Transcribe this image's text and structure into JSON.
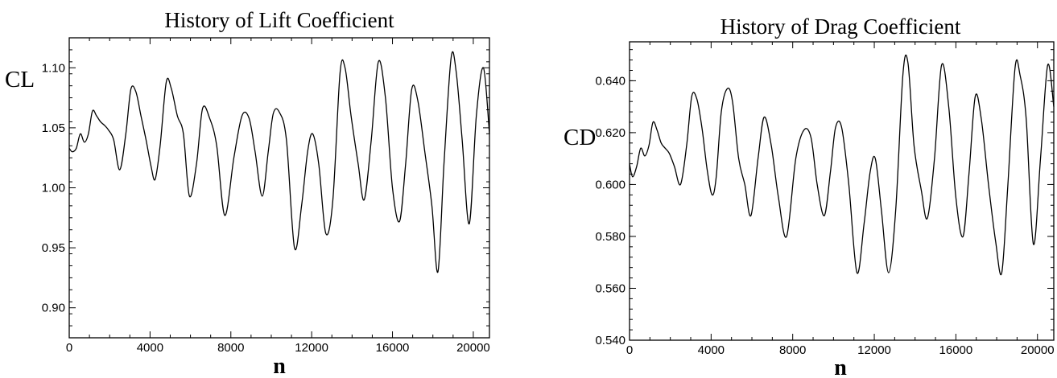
{
  "chart_data": [
    {
      "type": "line",
      "title": "History of Lift Coefficient",
      "xlabel": "n",
      "ylabel": "CL",
      "xlim": [
        0,
        20800
      ],
      "ylim": [
        0.875,
        1.125
      ],
      "x_ticks": [
        0,
        4000,
        8000,
        12000,
        16000,
        20000
      ],
      "y_ticks": [
        0.9,
        0.95,
        1.0,
        1.05,
        1.1
      ],
      "x_tick_labels": [
        "0",
        "4000",
        "8000",
        "12000",
        "16000",
        "20000"
      ],
      "y_tick_labels": [
        "0.90",
        "0.95",
        "1.00",
        "1.05",
        "1.10"
      ],
      "grid": false,
      "series": [
        {
          "x": [
            0,
            150,
            350,
            550,
            750,
            950,
            1150,
            1350,
            1550,
            1750,
            1950,
            2200,
            2500,
            2800,
            3050,
            3300,
            3550,
            3800,
            4050,
            4250,
            4500,
            4800,
            5050,
            5350,
            5650,
            5950,
            6300,
            6600,
            6950,
            7300,
            7700,
            8150,
            8550,
            8900,
            9200,
            9550,
            9850,
            10100,
            10400,
            10750,
            11150,
            11500,
            11800,
            12050,
            12350,
            12700,
            13050,
            13400,
            13650,
            13950,
            14300,
            14600,
            14950,
            15300,
            15650,
            16000,
            16350,
            16650,
            16950,
            17250,
            17600,
            17950,
            18250,
            18550,
            18900,
            19150,
            19450,
            19800,
            20150,
            20500,
            20800
          ],
          "y": [
            1.033,
            1.03,
            1.033,
            1.045,
            1.038,
            1.045,
            1.064,
            1.06,
            1.055,
            1.052,
            1.048,
            1.04,
            1.015,
            1.045,
            1.082,
            1.08,
            1.06,
            1.04,
            1.018,
            1.007,
            1.035,
            1.088,
            1.083,
            1.06,
            1.045,
            0.993,
            1.02,
            1.066,
            1.058,
            1.035,
            0.977,
            1.025,
            1.06,
            1.058,
            1.03,
            0.993,
            1.03,
            1.062,
            1.063,
            1.04,
            0.95,
            0.985,
            1.03,
            1.045,
            1.02,
            0.962,
            0.99,
            1.095,
            1.1,
            1.06,
            1.02,
            0.99,
            1.04,
            1.105,
            1.075,
            1.0,
            0.972,
            1.02,
            1.082,
            1.073,
            1.03,
            0.985,
            0.93,
            1.02,
            1.108,
            1.097,
            1.04,
            0.97,
            1.06,
            1.1,
            1.045
          ]
        }
      ]
    },
    {
      "type": "line",
      "title": "History of Drag Coefficient",
      "xlabel": "n",
      "ylabel": "CD",
      "xlim": [
        0,
        20800
      ],
      "ylim": [
        0.54,
        0.655
      ],
      "x_ticks": [
        0,
        4000,
        8000,
        12000,
        16000,
        20000
      ],
      "y_ticks": [
        0.54,
        0.56,
        0.58,
        0.6,
        0.62,
        0.64
      ],
      "x_tick_labels": [
        "0",
        "4000",
        "8000",
        "12000",
        "16000",
        "20000"
      ],
      "y_tick_labels": [
        "0.540",
        "0.560",
        "0.580",
        "0.600",
        "0.620",
        "0.640"
      ],
      "grid": false,
      "series": [
        {
          "x": [
            0,
            150,
            350,
            550,
            750,
            950,
            1150,
            1350,
            1550,
            1750,
            1950,
            2200,
            2500,
            2800,
            3050,
            3300,
            3550,
            3800,
            4050,
            4250,
            4500,
            4800,
            5050,
            5350,
            5650,
            5950,
            6300,
            6600,
            6950,
            7300,
            7700,
            8150,
            8550,
            8900,
            9200,
            9550,
            9850,
            10100,
            10400,
            10750,
            11150,
            11500,
            11800,
            12050,
            12350,
            12700,
            13050,
            13400,
            13650,
            13950,
            14300,
            14600,
            14950,
            15300,
            15650,
            16000,
            16350,
            16650,
            16950,
            17250,
            17600,
            17950,
            18250,
            18550,
            18900,
            19150,
            19450,
            19800,
            20150,
            20500,
            20800
          ],
          "y": [
            0.608,
            0.603,
            0.607,
            0.614,
            0.611,
            0.615,
            0.624,
            0.621,
            0.616,
            0.614,
            0.612,
            0.607,
            0.6,
            0.615,
            0.634,
            0.633,
            0.622,
            0.606,
            0.596,
            0.603,
            0.628,
            0.637,
            0.632,
            0.61,
            0.6,
            0.588,
            0.61,
            0.626,
            0.615,
            0.595,
            0.58,
            0.61,
            0.621,
            0.618,
            0.6,
            0.588,
            0.605,
            0.622,
            0.622,
            0.6,
            0.566,
            0.585,
            0.605,
            0.61,
            0.59,
            0.566,
            0.59,
            0.642,
            0.647,
            0.615,
            0.598,
            0.587,
            0.61,
            0.646,
            0.63,
            0.595,
            0.58,
            0.605,
            0.634,
            0.625,
            0.6,
            0.578,
            0.566,
            0.6,
            0.645,
            0.642,
            0.625,
            0.577,
            0.61,
            0.646,
            0.63
          ]
        }
      ]
    }
  ]
}
